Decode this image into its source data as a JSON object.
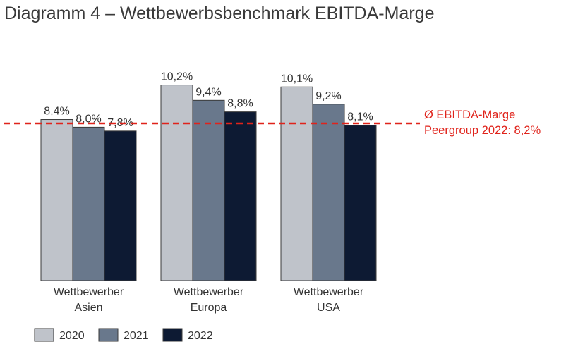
{
  "title": "Diagramm 4 – Wettbewerbsbenchmark EBITDA-Marge",
  "chart_data": {
    "type": "bar",
    "categories": [
      [
        "Wettbewerber",
        "Asien"
      ],
      [
        "Wettbewerber",
        "Europa"
      ],
      [
        "Wettbewerber",
        "USA"
      ]
    ],
    "series": [
      {
        "name": "2020",
        "color": "#bfc3ca",
        "values": [
          8.4,
          10.2,
          10.1
        ],
        "labels": [
          "8,4%",
          "10,2%",
          "10,1%"
        ]
      },
      {
        "name": "2021",
        "color": "#69788c",
        "values": [
          8.0,
          9.4,
          9.2
        ],
        "labels": [
          "8,0%",
          "9,4%",
          "9,2%"
        ]
      },
      {
        "name": "2022",
        "color": "#0d1a33",
        "values": [
          7.8,
          8.8,
          8.1
        ],
        "labels": [
          "7,8%",
          "8,8%",
          "8,1%"
        ]
      }
    ],
    "reference_line": {
      "value": 8.2,
      "color": "#e0231b",
      "label_lines": [
        "Ø EBITDA-Marge",
        "Peergroup 2022: 8,2%"
      ]
    },
    "legend": "bottom-left",
    "grid": false
  }
}
